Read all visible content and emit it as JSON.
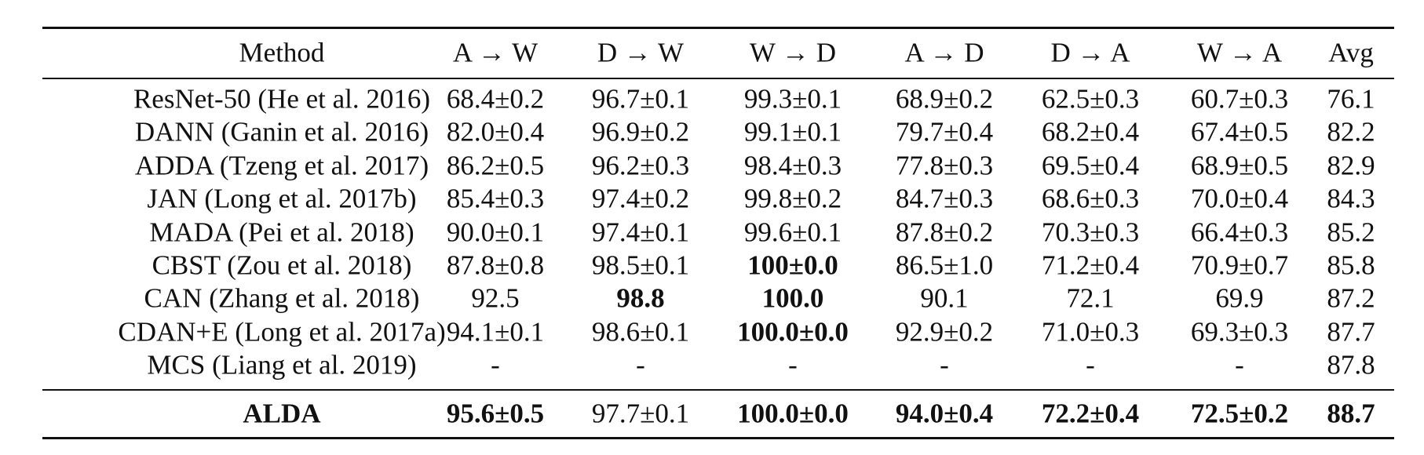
{
  "table": {
    "header": [
      "Method",
      "A → W",
      "D → W",
      "W → D",
      "A → D",
      "D → A",
      "W → A",
      "Avg"
    ],
    "rows": [
      [
        "ResNet-50 (He et al. 2016)",
        "68.4±0.2",
        "96.7±0.1",
        "99.3±0.1",
        "68.9±0.2",
        "62.5±0.3",
        "60.7±0.3",
        "76.1"
      ],
      [
        "DANN (Ganin et al. 2016)",
        "82.0±0.4",
        "96.9±0.2",
        "99.1±0.1",
        "79.7±0.4",
        "68.2±0.4",
        "67.4±0.5",
        "82.2"
      ],
      [
        "ADDA (Tzeng et al. 2017)",
        "86.2±0.5",
        "96.2±0.3",
        "98.4±0.3",
        "77.8±0.3",
        "69.5±0.4",
        "68.9±0.5",
        "82.9"
      ],
      [
        "JAN (Long et al. 2017b)",
        "85.4±0.3",
        "97.4±0.2",
        "99.8±0.2",
        "84.7±0.3",
        "68.6±0.3",
        "70.0±0.4",
        "84.3"
      ],
      [
        "MADA (Pei et al. 2018)",
        "90.0±0.1",
        "97.4±0.1",
        "99.6±0.1",
        "87.8±0.2",
        "70.3±0.3",
        "66.4±0.3",
        "85.2"
      ],
      [
        "CBST (Zou et al. 2018)",
        "87.8±0.8",
        "98.5±0.1",
        "100±0.0",
        "86.5±1.0",
        "71.2±0.4",
        "70.9±0.7",
        "85.8"
      ],
      [
        "CAN (Zhang et al. 2018)",
        "92.5",
        "98.8",
        "100.0",
        "90.1",
        "72.1",
        "69.9",
        "87.2"
      ],
      [
        "CDAN+E (Long et al. 2017a)",
        "94.1±0.1",
        "98.6±0.1",
        "100.0±0.0",
        "92.9±0.2",
        "71.0±0.3",
        "69.3±0.3",
        "87.7"
      ],
      [
        "MCS (Liang et al. 2019)",
        "-",
        "-",
        "-",
        "-",
        "-",
        "-",
        "87.8"
      ],
      [
        "ALDA",
        "95.6±0.5",
        "97.7±0.1",
        "100.0±0.0",
        "94.0±0.4",
        "72.2±0.4",
        "72.5±0.2",
        "88.7"
      ]
    ]
  }
}
